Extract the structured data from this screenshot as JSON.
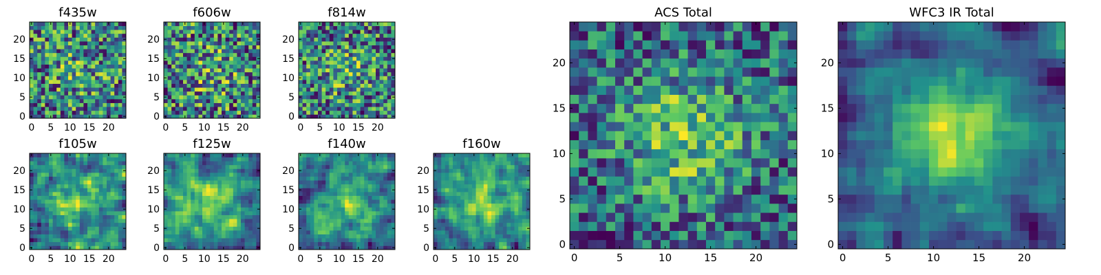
{
  "colors": {
    "colormap": [
      "#440154",
      "#3b528b",
      "#21918c",
      "#5ec962",
      "#fde725"
    ],
    "axis": "#000000",
    "background": "#ffffff"
  },
  "chart_data": [
    {
      "type": "heatmap",
      "title": "f435w",
      "grid": "25x25 pixel cutout",
      "xlim": [
        0,
        24
      ],
      "ylim": [
        0,
        24
      ],
      "xticks": [
        0,
        5,
        10,
        15,
        20
      ],
      "yticks": [
        0,
        5,
        10,
        15,
        20
      ],
      "value_range": [
        0,
        1
      ],
      "seed": 11,
      "noise": 1.0,
      "peak": 0.15,
      "smooth": 0
    },
    {
      "type": "heatmap",
      "title": "f606w",
      "grid": "25x25 pixel cutout",
      "xlim": [
        0,
        24
      ],
      "ylim": [
        0,
        24
      ],
      "xticks": [
        0,
        5,
        10,
        15,
        20
      ],
      "yticks": [
        0,
        5,
        10,
        15,
        20
      ],
      "value_range": [
        0,
        1
      ],
      "seed": 23,
      "noise": 1.0,
      "peak": 0.15,
      "smooth": 0
    },
    {
      "type": "heatmap",
      "title": "f814w",
      "grid": "25x25 pixel cutout",
      "xlim": [
        0,
        24
      ],
      "ylim": [
        0,
        24
      ],
      "xticks": [
        0,
        5,
        10,
        15,
        20
      ],
      "yticks": [
        0,
        5,
        10,
        15,
        20
      ],
      "value_range": [
        0,
        1
      ],
      "seed": 37,
      "noise": 1.0,
      "peak": 0.2,
      "smooth": 0
    },
    {
      "type": "heatmap",
      "title": "f105w",
      "grid": "25x25 pixel cutout",
      "xlim": [
        0,
        24
      ],
      "ylim": [
        0,
        24
      ],
      "xticks": [
        0,
        5,
        10,
        15,
        20
      ],
      "yticks": [
        0,
        5,
        10,
        15,
        20
      ],
      "value_range": [
        0,
        1
      ],
      "seed": 41,
      "noise": 0.9,
      "peak": 0.35,
      "smooth": 1
    },
    {
      "type": "heatmap",
      "title": "f125w",
      "grid": "25x25 pixel cutout",
      "xlim": [
        0,
        24
      ],
      "ylim": [
        0,
        24
      ],
      "xticks": [
        0,
        5,
        10,
        15,
        20
      ],
      "yticks": [
        0,
        5,
        10,
        15,
        20
      ],
      "value_range": [
        0,
        1
      ],
      "seed": 53,
      "noise": 0.9,
      "peak": 0.35,
      "smooth": 1
    },
    {
      "type": "heatmap",
      "title": "f140w",
      "grid": "25x25 pixel cutout",
      "xlim": [
        0,
        24
      ],
      "ylim": [
        0,
        24
      ],
      "xticks": [
        0,
        5,
        10,
        15,
        20
      ],
      "yticks": [
        0,
        5,
        10,
        15,
        20
      ],
      "value_range": [
        0,
        1
      ],
      "seed": 67,
      "noise": 0.9,
      "peak": 0.35,
      "smooth": 1
    },
    {
      "type": "heatmap",
      "title": "f160w",
      "grid": "25x25 pixel cutout",
      "xlim": [
        0,
        24
      ],
      "ylim": [
        0,
        24
      ],
      "xticks": [
        0,
        5,
        10,
        15,
        20
      ],
      "yticks": [
        0,
        5,
        10,
        15,
        20
      ],
      "value_range": [
        0,
        1
      ],
      "seed": 79,
      "noise": 0.9,
      "peak": 0.45,
      "smooth": 1
    },
    {
      "type": "heatmap",
      "title": "ACS Total",
      "grid": "25x25 pixel cutout",
      "xlim": [
        0,
        24
      ],
      "ylim": [
        0,
        24
      ],
      "xticks": [
        0,
        5,
        10,
        15,
        20
      ],
      "yticks": [
        0,
        5,
        10,
        15,
        20
      ],
      "value_range": [
        0,
        1
      ],
      "seed": 97,
      "noise": 0.8,
      "peak": 0.45,
      "smooth": 0
    },
    {
      "type": "heatmap",
      "title": "WFC3 IR Total",
      "grid": "25x25 pixel cutout",
      "xlim": [
        0,
        24
      ],
      "ylim": [
        0,
        24
      ],
      "xticks": [
        0,
        5,
        10,
        15,
        20
      ],
      "yticks": [
        0,
        5,
        10,
        15,
        20
      ],
      "value_range": [
        0,
        1
      ],
      "seed": 113,
      "noise": 0.7,
      "peak": 0.65,
      "smooth": 1
    }
  ]
}
